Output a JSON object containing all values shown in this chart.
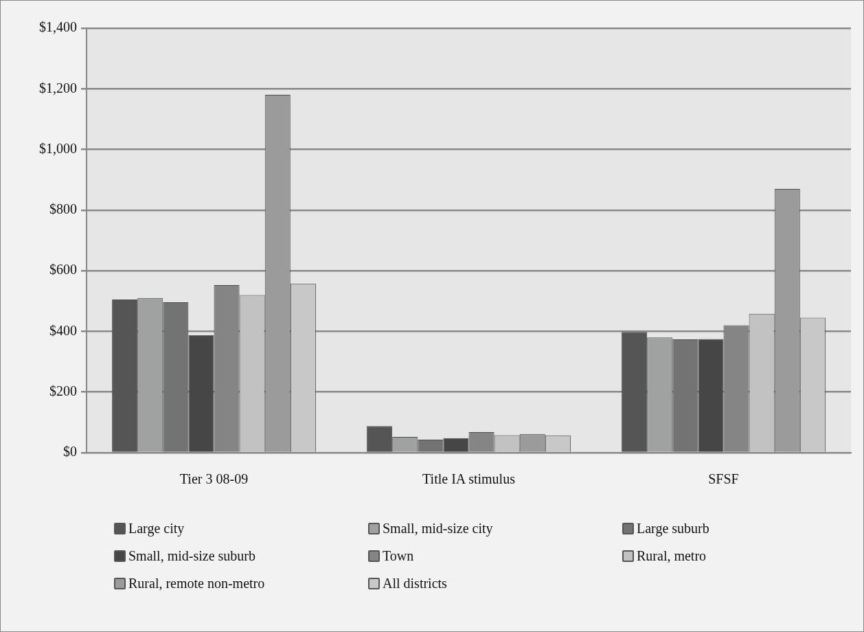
{
  "chart_data": {
    "type": "bar",
    "categories": [
      "Tier 3 08-09",
      "Title IA stimulus",
      "SFSF"
    ],
    "series": [
      {
        "name": "Large city",
        "color": "#555555",
        "values": [
          505,
          88,
          398
        ]
      },
      {
        "name": "Small, mid-size city",
        "color": "#a0a2a2",
        "values": [
          510,
          52,
          380
        ]
      },
      {
        "name": "Large suburb",
        "color": "#737373",
        "values": [
          496,
          43,
          374
        ]
      },
      {
        "name": "Small, mid-size suburb",
        "color": "#464646",
        "values": [
          388,
          48,
          375
        ]
      },
      {
        "name": "Town",
        "color": "#858585",
        "values": [
          553,
          68,
          420
        ]
      },
      {
        "name": "Rural, metro",
        "color": "#c2c2c2",
        "values": [
          520,
          58,
          458
        ]
      },
      {
        "name": "Rural, remote non-metro",
        "color": "#9b9b9b",
        "values": [
          1180,
          62,
          870
        ]
      },
      {
        "name": "All districts",
        "color": "#c8c8c8",
        "values": [
          558,
          57,
          445
        ]
      }
    ],
    "ylim": [
      0,
      1400
    ],
    "yticks": [
      {
        "value": 0,
        "label": "$0"
      },
      {
        "value": 200,
        "label": "$200"
      },
      {
        "value": 400,
        "label": "$400"
      },
      {
        "value": 600,
        "label": "$600"
      },
      {
        "value": 800,
        "label": "$800"
      },
      {
        "value": 1000,
        "label": "$1,000"
      },
      {
        "value": 1200,
        "label": "$1,200"
      },
      {
        "value": 1400,
        "label": "$1,400"
      }
    ],
    "grid": "y",
    "legend": "bottom"
  }
}
